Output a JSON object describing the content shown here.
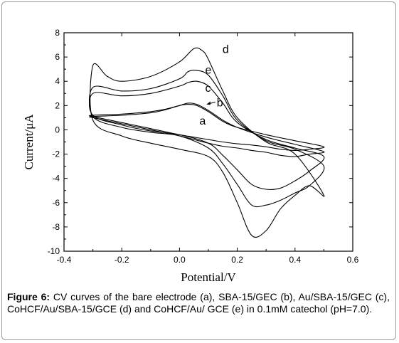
{
  "chart_data": {
    "type": "line",
    "xlabel": "Potential/V",
    "ylabel": "Current/μA",
    "xlim": [
      -0.4,
      0.6
    ],
    "ylim": [
      -10,
      8
    ],
    "x_ticks": [
      "-0.4",
      "-0.2",
      "0.0",
      "0.2",
      "0.4",
      "0.6"
    ],
    "y_ticks": [
      "-10",
      "-8",
      "-6",
      "-4",
      "-2",
      "0",
      "2",
      "4",
      "6",
      "8"
    ],
    "grid": false,
    "line_color": "#000000",
    "series": [
      {
        "name": "a",
        "x": [
          -0.3,
          -0.2,
          -0.1,
          -0.05,
          0.0,
          0.03,
          0.06,
          0.1,
          0.15,
          0.2,
          0.3,
          0.4,
          0.5,
          0.45,
          0.4,
          0.35,
          0.3,
          0.25,
          0.2,
          0.15,
          0.1,
          0.0,
          -0.1,
          -0.2,
          -0.3
        ],
        "y": [
          1.2,
          1.3,
          1.5,
          1.7,
          2.0,
          2.1,
          2.0,
          1.5,
          0.7,
          0.2,
          -0.4,
          -0.9,
          -1.4,
          -1.6,
          -1.7,
          -1.6,
          -1.4,
          -1.25,
          -1.15,
          -1.0,
          -0.8,
          -0.4,
          0.1,
          0.6,
          1.1
        ]
      },
      {
        "name": "b",
        "x": [
          -0.3,
          -0.2,
          -0.1,
          -0.05,
          0.0,
          0.03,
          0.06,
          0.1,
          0.15,
          0.2,
          0.3,
          0.4,
          0.5,
          0.45,
          0.4,
          0.35,
          0.3,
          0.25,
          0.2,
          0.15,
          0.1,
          0.0,
          -0.1,
          -0.2,
          -0.3
        ],
        "y": [
          1.1,
          1.2,
          1.4,
          1.65,
          2.0,
          2.2,
          2.1,
          1.6,
          0.8,
          0.2,
          -0.6,
          -1.2,
          -1.8,
          -2.0,
          -2.2,
          -2.1,
          -1.85,
          -1.7,
          -1.5,
          -1.35,
          -1.1,
          -0.5,
          0.0,
          0.5,
          1.0
        ]
      },
      {
        "name": "c",
        "x": [
          -0.3,
          -0.2,
          -0.1,
          0.0,
          0.03,
          0.06,
          0.1,
          0.15,
          0.2,
          0.3,
          0.4,
          0.5,
          0.45,
          0.4,
          0.35,
          0.3,
          0.25,
          0.2,
          0.15,
          0.1,
          0.0,
          -0.1,
          -0.2,
          -0.3
        ],
        "y": [
          3.0,
          2.8,
          3.0,
          3.6,
          3.9,
          4.0,
          3.6,
          2.2,
          0.6,
          -0.8,
          -1.5,
          -2.2,
          -3.4,
          -4.2,
          -4.8,
          -4.9,
          -4.5,
          -3.3,
          -2.1,
          -1.1,
          -0.4,
          -0.1,
          0.4,
          1.2
        ]
      },
      {
        "name": "d",
        "x": [
          -0.3,
          -0.25,
          -0.2,
          -0.1,
          0.0,
          0.05,
          0.08,
          0.1,
          0.15,
          0.2,
          0.3,
          0.4,
          0.5,
          0.45,
          0.4,
          0.35,
          0.3,
          0.25,
          0.2,
          0.15,
          0.1,
          0.0,
          -0.1,
          -0.2,
          -0.3
        ],
        "y": [
          5.3,
          4.4,
          4.0,
          4.4,
          5.6,
          6.7,
          6.5,
          5.8,
          3.2,
          1.0,
          -1.0,
          -2.0,
          -5.4,
          -4.6,
          -5.4,
          -6.5,
          -8.3,
          -8.7,
          -6.0,
          -3.5,
          -2.2,
          -1.6,
          -1.1,
          -0.5,
          0.8
        ]
      },
      {
        "name": "e",
        "x": [
          -0.3,
          -0.2,
          -0.1,
          0.0,
          0.03,
          0.06,
          0.1,
          0.15,
          0.2,
          0.3,
          0.4,
          0.5,
          0.45,
          0.4,
          0.35,
          0.3,
          0.25,
          0.2,
          0.15,
          0.1,
          0.0,
          -0.1,
          -0.2,
          -0.3
        ],
        "y": [
          3.5,
          3.2,
          3.4,
          4.2,
          4.8,
          4.9,
          4.5,
          2.8,
          0.8,
          -0.9,
          -1.6,
          -3.0,
          -4.6,
          -5.2,
          -5.8,
          -6.2,
          -6.2,
          -4.5,
          -2.8,
          -1.5,
          -0.5,
          -0.2,
          0.2,
          1.1
        ]
      }
    ],
    "annotations": [
      {
        "text": "d",
        "x": 0.08,
        "y": 6.8
      },
      {
        "text": "e",
        "x": 0.02,
        "y": 5.1
      },
      {
        "text": "c",
        "x": 0.02,
        "y": 3.6
      },
      {
        "text": "b",
        "x": 0.06,
        "y": 2.4
      },
      {
        "text": "a",
        "x": 0.0,
        "y": 0.9
      }
    ]
  },
  "caption": {
    "lead": "Figure 6:",
    "text": " CV curves of the bare electrode (a), SBA-15/GEC (b), Au/SBA-15/GEC (c), CoHCF/Au/SBA-15/GCE (d) and CoHCF/Au/ GCE (e) in 0.1mM catechol (pH=7.0)."
  }
}
